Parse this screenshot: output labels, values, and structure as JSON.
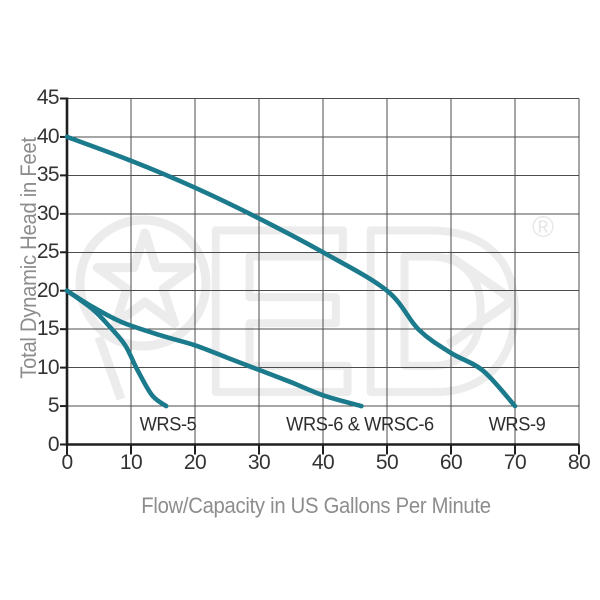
{
  "chart_data": {
    "type": "line",
    "title": "",
    "xlabel": "Flow/Capacity in US Gallons Per Minute",
    "ylabel": "Total Dynamic Head in Feet",
    "xlim": [
      0,
      80
    ],
    "ylim": [
      0,
      45
    ],
    "x_ticks": [
      0,
      10,
      20,
      30,
      40,
      50,
      60,
      70,
      80
    ],
    "y_ticks": [
      0,
      5,
      10,
      15,
      20,
      25,
      30,
      35,
      40,
      45
    ],
    "grid": true,
    "legend_position": "none (curves labeled inline under each curve end)",
    "line_color": "#1b7a8c",
    "series": [
      {
        "name": "WRS-5",
        "points": [
          [
            0,
            20
          ],
          [
            4,
            17.6
          ],
          [
            6.7,
            15.3
          ],
          [
            9.1,
            12.9
          ],
          [
            11,
            9.7
          ],
          [
            13.3,
            6.4
          ],
          [
            15.5,
            5
          ]
        ],
        "label_anchor": [
          15.8,
          2.6
        ]
      },
      {
        "name": "WRS-6 & WRSC-6",
        "points": [
          [
            0,
            20
          ],
          [
            4,
            17.9
          ],
          [
            8.6,
            15.9
          ],
          [
            15,
            14.1
          ],
          [
            20,
            12.9
          ],
          [
            25,
            11.3
          ],
          [
            30,
            9.7
          ],
          [
            35,
            8.1
          ],
          [
            40,
            6.4
          ],
          [
            46,
            5
          ]
        ],
        "label_anchor": [
          45.8,
          2.6
        ]
      },
      {
        "name": "WRS-9",
        "points": [
          [
            0,
            40
          ],
          [
            10,
            36.9
          ],
          [
            20,
            33.4
          ],
          [
            30,
            29.4
          ],
          [
            40,
            25
          ],
          [
            50,
            20
          ],
          [
            55,
            14.9
          ],
          [
            60,
            11.9
          ],
          [
            65,
            9.6
          ],
          [
            70,
            5
          ]
        ],
        "label_anchor": [
          70.3,
          2.6
        ]
      }
    ]
  },
  "watermark": {
    "description": "faint PED logo (outlined P with star, E, D with arrow)",
    "letter_e": "E",
    "letter_d": "D",
    "registered": "®"
  },
  "colors": {
    "background": "#ffffff",
    "curve": "#1b7a8c",
    "grid_line": "#4c4c4c",
    "axis_line": "#1f1f1f",
    "tick_label": "#333333",
    "axis_title": "#8d8d8d",
    "curve_label": "#2e2e2e",
    "watermark": "#ececec"
  }
}
